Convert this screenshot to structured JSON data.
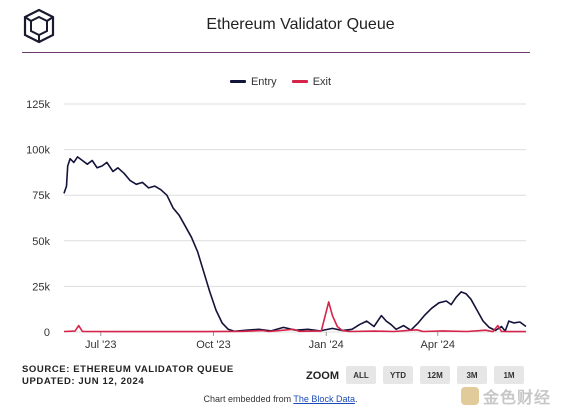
{
  "title": "Ethereum Validator Queue",
  "legend": {
    "entry": "Entry",
    "exit": "Exit"
  },
  "source_line": "SOURCE: ETHEREUM VALIDATOR QUEUE",
  "updated_line": "UPDATED: JUN 12, 2024",
  "zoom": {
    "label": "ZOOM",
    "buttons": [
      "ALL",
      "YTD",
      "12M",
      "3M",
      "1M"
    ]
  },
  "footer": {
    "prefix": "Chart embedded from ",
    "link_text": "The Block Data",
    "suffix": "."
  },
  "watermark_text": "金色财经",
  "colors": {
    "entry": "#13133a",
    "exit": "#d6234a",
    "grid": "#dddddd"
  },
  "chart_data": {
    "type": "line",
    "title": "Ethereum Validator Queue",
    "xlabel": "",
    "ylabel": "",
    "x_range": [
      "2023-06-01",
      "2024-06-12"
    ],
    "ylim": [
      0,
      125000
    ],
    "yticks": [
      0,
      25000,
      50000,
      75000,
      100000,
      125000
    ],
    "ytick_labels": [
      "0",
      "25k",
      "50k",
      "75k",
      "100k",
      "125k"
    ],
    "xticks": [
      "2023-07-01",
      "2023-10-01",
      "2024-01-01",
      "2024-04-01"
    ],
    "xtick_labels": [
      "Jul '23",
      "Oct '23",
      "Jan '24",
      "Apr '24"
    ],
    "grid": true,
    "legend_position": "top-center",
    "series": [
      {
        "name": "Entry",
        "points": [
          [
            "2023-06-01",
            76000
          ],
          [
            "2023-06-03",
            80000
          ],
          [
            "2023-06-04",
            91000
          ],
          [
            "2023-06-06",
            95000
          ],
          [
            "2023-06-09",
            93000
          ],
          [
            "2023-06-12",
            96000
          ],
          [
            "2023-06-16",
            94000
          ],
          [
            "2023-06-20",
            92000
          ],
          [
            "2023-06-24",
            94000
          ],
          [
            "2023-06-28",
            90000
          ],
          [
            "2023-07-02",
            91000
          ],
          [
            "2023-07-06",
            93000
          ],
          [
            "2023-07-11",
            88000
          ],
          [
            "2023-07-15",
            90000
          ],
          [
            "2023-07-20",
            87000
          ],
          [
            "2023-07-25",
            83000
          ],
          [
            "2023-07-30",
            81000
          ],
          [
            "2023-08-04",
            82000
          ],
          [
            "2023-08-09",
            79000
          ],
          [
            "2023-08-14",
            80000
          ],
          [
            "2023-08-19",
            78000
          ],
          [
            "2023-08-24",
            75000
          ],
          [
            "2023-08-29",
            68000
          ],
          [
            "2023-09-03",
            64000
          ],
          [
            "2023-09-08",
            58000
          ],
          [
            "2023-09-13",
            52000
          ],
          [
            "2023-09-18",
            44000
          ],
          [
            "2023-09-23",
            33000
          ],
          [
            "2023-09-28",
            22000
          ],
          [
            "2023-10-03",
            12000
          ],
          [
            "2023-10-08",
            5000
          ],
          [
            "2023-10-13",
            1500
          ],
          [
            "2023-10-18",
            400
          ],
          [
            "2023-10-28",
            1000
          ],
          [
            "2023-11-07",
            1500
          ],
          [
            "2023-11-17",
            600
          ],
          [
            "2023-11-27",
            2500
          ],
          [
            "2023-12-07",
            1000
          ],
          [
            "2023-12-17",
            1500
          ],
          [
            "2023-12-27",
            600
          ],
          [
            "2024-01-06",
            2000
          ],
          [
            "2024-01-14",
            800
          ],
          [
            "2024-01-22",
            1500
          ],
          [
            "2024-01-28",
            4000
          ],
          [
            "2024-02-03",
            6000
          ],
          [
            "2024-02-09",
            3000
          ],
          [
            "2024-02-15",
            9000
          ],
          [
            "2024-02-19",
            6000
          ],
          [
            "2024-02-23",
            4000
          ],
          [
            "2024-02-27",
            1500
          ],
          [
            "2024-03-04",
            3500
          ],
          [
            "2024-03-10",
            1000
          ],
          [
            "2024-03-16",
            5000
          ],
          [
            "2024-03-21",
            9000
          ],
          [
            "2024-03-27",
            13000
          ],
          [
            "2024-04-02",
            16000
          ],
          [
            "2024-04-08",
            17000
          ],
          [
            "2024-04-12",
            15000
          ],
          [
            "2024-04-16",
            19000
          ],
          [
            "2024-04-20",
            22000
          ],
          [
            "2024-04-24",
            21000
          ],
          [
            "2024-04-28",
            18000
          ],
          [
            "2024-05-03",
            12000
          ],
          [
            "2024-05-08",
            6000
          ],
          [
            "2024-05-13",
            2500
          ],
          [
            "2024-05-18",
            800
          ],
          [
            "2024-05-23",
            3000
          ],
          [
            "2024-05-26",
            500
          ],
          [
            "2024-05-29",
            6000
          ],
          [
            "2024-06-02",
            5000
          ],
          [
            "2024-06-07",
            5500
          ],
          [
            "2024-06-12",
            3000
          ]
        ]
      },
      {
        "name": "Exit",
        "points": [
          [
            "2023-06-01",
            300
          ],
          [
            "2023-06-10",
            500
          ],
          [
            "2023-06-13",
            3500
          ],
          [
            "2023-06-16",
            300
          ],
          [
            "2023-07-15",
            200
          ],
          [
            "2023-08-20",
            200
          ],
          [
            "2023-09-25",
            200
          ],
          [
            "2023-10-25",
            400
          ],
          [
            "2023-11-10",
            800
          ],
          [
            "2023-11-15",
            300
          ],
          [
            "2023-12-05",
            1500
          ],
          [
            "2023-12-10",
            400
          ],
          [
            "2023-12-28",
            600
          ],
          [
            "2024-01-03",
            16500
          ],
          [
            "2024-01-06",
            9000
          ],
          [
            "2024-01-10",
            3000
          ],
          [
            "2024-01-14",
            800
          ],
          [
            "2024-01-20",
            300
          ],
          [
            "2024-02-10",
            500
          ],
          [
            "2024-02-25",
            300
          ],
          [
            "2024-03-15",
            1200
          ],
          [
            "2024-03-20",
            300
          ],
          [
            "2024-04-05",
            600
          ],
          [
            "2024-04-25",
            300
          ],
          [
            "2024-05-10",
            1000
          ],
          [
            "2024-05-16",
            200
          ],
          [
            "2024-05-20",
            3500
          ],
          [
            "2024-05-23",
            300
          ],
          [
            "2024-06-12",
            200
          ]
        ]
      }
    ]
  }
}
